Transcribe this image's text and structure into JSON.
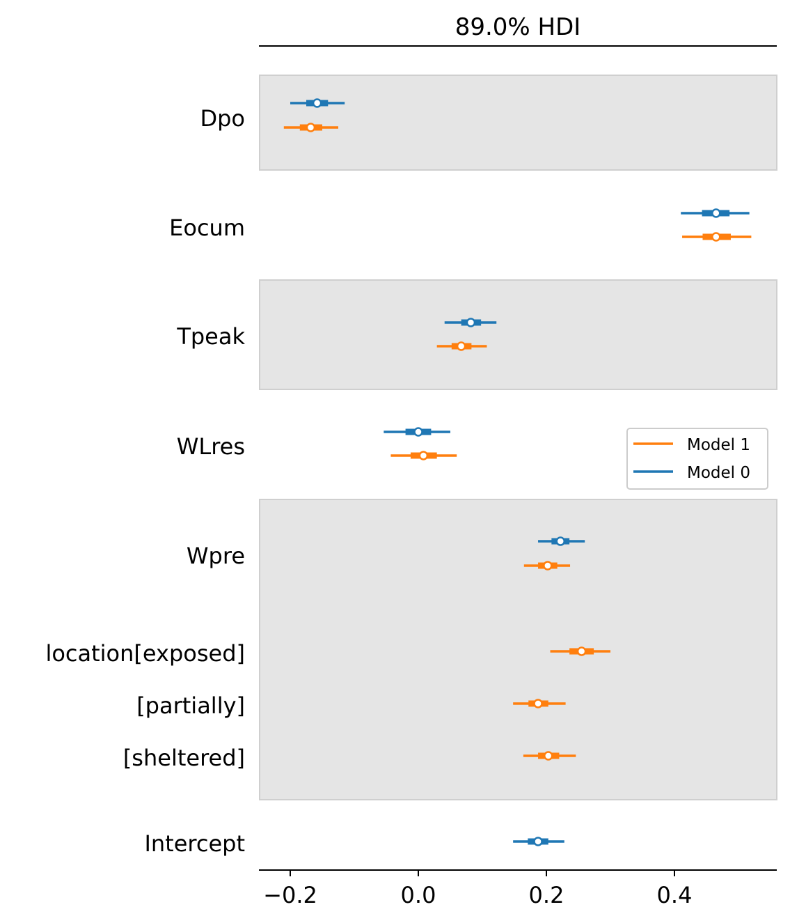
{
  "chart_data": {
    "type": "forest",
    "title": "89.0% HDI",
    "xlim": [
      -0.25,
      0.555
    ],
    "xticks": [
      -0.2,
      0.0,
      0.2,
      0.4
    ],
    "xtick_labels": [
      "−0.2",
      "0.0",
      "0.2",
      "0.4"
    ],
    "legend": {
      "placement": "right",
      "entries": [
        {
          "label": "Model 1",
          "color": "#ff7f0e"
        },
        {
          "label": "Model 0",
          "color": "#1f77b4"
        }
      ]
    },
    "colors": {
      "model_0": "#1f77b4",
      "model_1": "#ff7f0e",
      "band": "#e5e5e5"
    },
    "groups": [
      {
        "name": "Dpo",
        "shaded": true,
        "labels": [
          "Dpo"
        ],
        "rows": [
          {
            "label": "Dpo",
            "series": [
              {
                "model": "Model 0",
                "mean": -0.158,
                "hdi": [
                  -0.2,
                  -0.115
                ],
                "iqr": [
                  -0.175,
                  -0.141
                ]
              },
              {
                "model": "Model 1",
                "mean": -0.168,
                "hdi": [
                  -0.21,
                  -0.125
                ],
                "iqr": [
                  -0.185,
                  -0.15
                ]
              }
            ]
          }
        ]
      },
      {
        "name": "Eocum",
        "shaded": false,
        "labels": [
          "Eocum"
        ],
        "rows": [
          {
            "label": "Eocum",
            "series": [
              {
                "model": "Model 0",
                "mean": 0.465,
                "hdi": [
                  0.41,
                  0.517
                ],
                "iqr": [
                  0.443,
                  0.486
                ]
              },
              {
                "model": "Model 1",
                "mean": 0.465,
                "hdi": [
                  0.412,
                  0.52
                ],
                "iqr": [
                  0.444,
                  0.488
                ]
              }
            ]
          }
        ]
      },
      {
        "name": "Tpeak",
        "shaded": true,
        "labels": [
          "Tpeak"
        ],
        "rows": [
          {
            "label": "Tpeak",
            "series": [
              {
                "model": "Model 0",
                "mean": 0.082,
                "hdi": [
                  0.041,
                  0.122
                ],
                "iqr": [
                  0.067,
                  0.098
                ]
              },
              {
                "model": "Model 1",
                "mean": 0.067,
                "hdi": [
                  0.029,
                  0.107
                ],
                "iqr": [
                  0.052,
                  0.083
                ]
              }
            ]
          }
        ]
      },
      {
        "name": "WLres",
        "shaded": false,
        "labels": [
          "WLres"
        ],
        "rows": [
          {
            "label": "WLres",
            "series": [
              {
                "model": "Model 0",
                "mean": 0.0,
                "hdi": [
                  -0.054,
                  0.05
                ],
                "iqr": [
                  -0.02,
                  0.02
                ]
              },
              {
                "model": "Model 1",
                "mean": 0.008,
                "hdi": [
                  -0.043,
                  0.06
                ],
                "iqr": [
                  -0.012,
                  0.029
                ]
              }
            ]
          }
        ]
      },
      {
        "name": "Wpre_location",
        "shaded": true,
        "labels": [
          "Wpre",
          "location[exposed]",
          "[partially]",
          "[sheltered]"
        ],
        "rows": [
          {
            "label": "Wpre",
            "series": [
              {
                "model": "Model 0",
                "mean": 0.222,
                "hdi": [
                  0.187,
                  0.26
                ],
                "iqr": [
                  0.208,
                  0.236
                ]
              },
              {
                "model": "Model 1",
                "mean": 0.202,
                "hdi": [
                  0.165,
                  0.237
                ],
                "iqr": [
                  0.187,
                  0.217
                ]
              }
            ]
          },
          {
            "label": "location[exposed]",
            "series": [
              {
                "model": "Model 1",
                "mean": 0.255,
                "hdi": [
                  0.206,
                  0.3
                ],
                "iqr": [
                  0.236,
                  0.274
                ]
              }
            ]
          },
          {
            "label": "[partially]",
            "series": [
              {
                "model": "Model 1",
                "mean": 0.187,
                "hdi": [
                  0.148,
                  0.23
                ],
                "iqr": [
                  0.172,
                  0.203
                ]
              }
            ]
          },
          {
            "label": "[sheltered]",
            "series": [
              {
                "model": "Model 1",
                "mean": 0.203,
                "hdi": [
                  0.164,
                  0.246
                ],
                "iqr": [
                  0.187,
                  0.22
                ]
              }
            ]
          }
        ]
      },
      {
        "name": "Intercept",
        "shaded": false,
        "labels": [
          "Intercept"
        ],
        "rows": [
          {
            "label": "Intercept",
            "series": [
              {
                "model": "Model 0",
                "mean": 0.187,
                "hdi": [
                  0.148,
                  0.228
                ],
                "iqr": [
                  0.171,
                  0.203
                ]
              }
            ]
          }
        ]
      }
    ]
  }
}
